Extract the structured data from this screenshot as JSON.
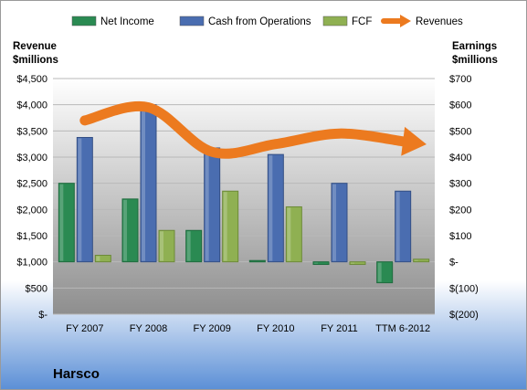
{
  "chart_data": {
    "type": "bar",
    "company": "Harsco",
    "categories": [
      "FY 2007",
      "FY 2008",
      "FY 2009",
      "FY 2010",
      "FY 2011",
      "TTM 6-2012"
    ],
    "series": [
      {
        "name": "Net Income",
        "axis": "right",
        "color": "#2a8a52",
        "values": [
          300,
          240,
          120,
          5,
          -10,
          -80
        ]
      },
      {
        "name": "Cash from Operations",
        "axis": "right",
        "color": "#4a6db0",
        "values": [
          475,
          600,
          435,
          410,
          300,
          270
        ]
      },
      {
        "name": "FCF",
        "axis": "right",
        "color": "#8fb052",
        "values": [
          25,
          120,
          270,
          210,
          -10,
          10
        ]
      },
      {
        "name": "Revenues",
        "axis": "left",
        "color": "#ec7a1f",
        "type": "line",
        "values": [
          3700,
          3950,
          3100,
          3250,
          3450,
          3300
        ]
      }
    ],
    "left_axis": {
      "label_line1": "Revenue",
      "label_line2": "$millions",
      "ylim": [
        0,
        4500
      ],
      "ticks": [
        "$4,500",
        "$4,000",
        "$3,500",
        "$3,000",
        "$2,500",
        "$2,000",
        "$1,500",
        "$1,000",
        "$500",
        "$-"
      ]
    },
    "right_axis": {
      "label_line1": "Earnings",
      "label_line2": "$millions",
      "ylim": [
        -200,
        700
      ],
      "ticks": [
        "$700",
        "$600",
        "$500",
        "$400",
        "$300",
        "$200",
        "$100",
        "$-",
        "$(100)",
        "$(200)"
      ]
    },
    "grid": true,
    "legend": "top"
  }
}
